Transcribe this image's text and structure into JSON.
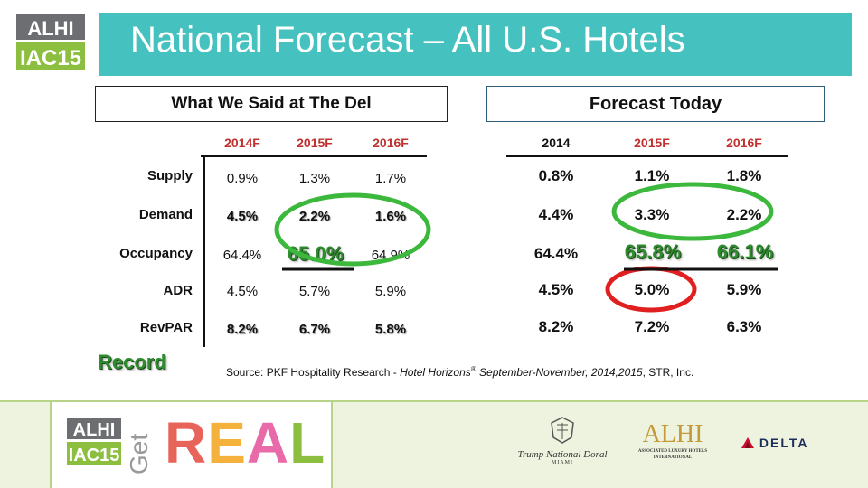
{
  "logo_top": {
    "line1": "ALHI",
    "line2": "IAC15"
  },
  "title": "National Forecast – All U.S. Hotels",
  "left_box_title": "What We Said at The Del",
  "right_box_title": "Forecast Today",
  "left_headers": [
    "2014F",
    "2015F",
    "2016F"
  ],
  "right_headers": [
    "2014",
    "2015F",
    "2016F"
  ],
  "row_labels": [
    "Supply",
    "Demand",
    "Occupancy",
    "ADR",
    "RevPAR"
  ],
  "left_rows": [
    [
      "0.9%",
      "1.3%",
      "1.7%"
    ],
    [
      "4.5%",
      "2.2%",
      "1.6%"
    ],
    [
      "64.4%",
      "65.0%",
      "64.9%"
    ],
    [
      "4.5%",
      "5.7%",
      "5.9%"
    ],
    [
      "8.2%",
      "6.7%",
      "5.8%"
    ]
  ],
  "right_rows": [
    [
      "0.8%",
      "1.1%",
      "1.8%"
    ],
    [
      "4.4%",
      "3.3%",
      "2.2%"
    ],
    [
      "64.4%",
      "65.8%",
      "66.1%"
    ],
    [
      "4.5%",
      "5.0%",
      "5.9%"
    ],
    [
      "8.2%",
      "7.2%",
      "6.3%"
    ]
  ],
  "record_label": "Record",
  "source": {
    "prefix": "Source: PKF Hospitality Research - ",
    "publication": "Hotel Horizons",
    "reg": "®",
    "suffix_italic": " September-November, 2014,2015",
    "suffix": ", STR, Inc."
  },
  "colors": {
    "teal": "#45c1c0",
    "green": "#2e8b2e",
    "red_header": "#c0302e",
    "circle_green": "#3cb83c",
    "circle_red": "#e02020"
  },
  "footer": {
    "logo_line1": "ALHI",
    "logo_line2": "IAC15",
    "get": "Get",
    "real": [
      "R",
      "E",
      "A",
      "L"
    ],
    "real_colors": [
      "#e8645a",
      "#f4b13c",
      "#e86aa8",
      "#8cbf3f"
    ],
    "trump_line1": "Trump National Doral",
    "trump_line2": "MIAMI",
    "alhi_big": "ALHI",
    "alhi_sub1": "Associated Luxury Hotels",
    "alhi_sub2": "International",
    "delta": "DELTA"
  }
}
